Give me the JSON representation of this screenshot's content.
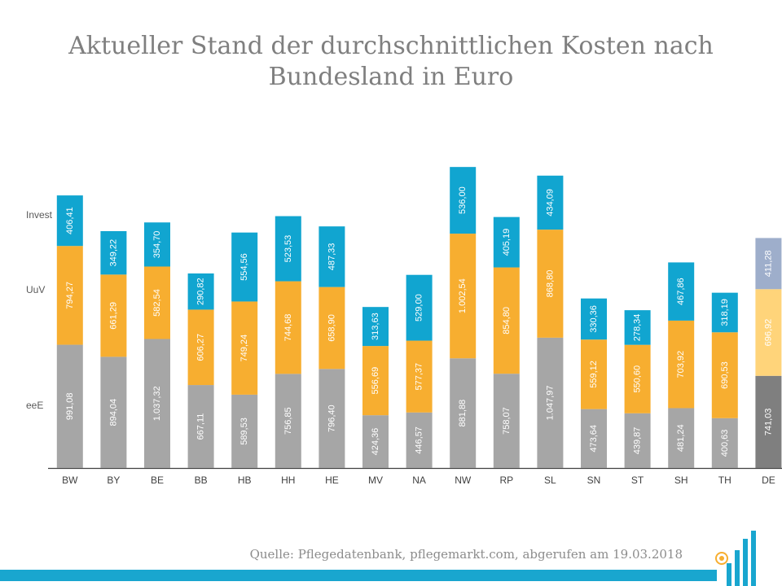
{
  "chart_data": {
    "type": "bar",
    "stacked": true,
    "title": [
      "Aktueller Stand der durchschnittlichen Kosten nach",
      "Bundesland in Euro"
    ],
    "categories": [
      "BW",
      "BY",
      "BE",
      "BB",
      "HB",
      "HH",
      "HE",
      "MV",
      "NA",
      "NW",
      "RP",
      "SL",
      "SN",
      "ST",
      "SH",
      "TH",
      "DE"
    ],
    "legend_labels": [
      "eeE",
      "UuV",
      "Invest"
    ],
    "series": [
      {
        "name": "eeE",
        "color": "#a6a6a6",
        "highlight_color": "#7f7f7f",
        "values": [
          991.08,
          894.04,
          1037.32,
          667.11,
          589.53,
          756.85,
          796.4,
          424.36,
          446.57,
          881.88,
          758.07,
          1047.97,
          473.64,
          439.87,
          481.24,
          400.63,
          741.03
        ],
        "labels": [
          "991,08",
          "894,04",
          "1.037,32",
          "667,11",
          "589,53",
          "756,85",
          "796,40",
          "424,36",
          "446,57",
          "881,88",
          "758,07",
          "1.047,97",
          "473,64",
          "439,87",
          "481,24",
          "400,63",
          "741,03"
        ]
      },
      {
        "name": "UuV",
        "color": "#f7ae30",
        "highlight_color": "#ffd47a",
        "values": [
          794.27,
          661.29,
          582.54,
          606.27,
          749.24,
          744.68,
          658.9,
          556.69,
          577.37,
          1002.54,
          854.8,
          868.8,
          559.12,
          550.6,
          703.92,
          690.53,
          696.92
        ],
        "labels": [
          "794,27",
          "661,29",
          "582,54",
          "606,27",
          "749,24",
          "744,68",
          "658,90",
          "556,69",
          "577,37",
          "1.002,54",
          "854,80",
          "868,80",
          "559,12",
          "550,60",
          "703,92",
          "690,53",
          "696,92"
        ]
      },
      {
        "name": "Invest",
        "color": "#11a5d0",
        "highlight_color": "#9eaecb",
        "values": [
          406.41,
          349.22,
          354.7,
          290.82,
          554.56,
          523.53,
          487.33,
          313.63,
          529.0,
          536.0,
          405.19,
          434.09,
          330.36,
          278.34,
          467.86,
          318.19,
          411.28
        ],
        "labels": [
          "406,41",
          "349,22",
          "354,70",
          "290,82",
          "554,56",
          "523,53",
          "487,33",
          "313,63",
          "529,00",
          "536,00",
          "405,19",
          "434,09",
          "330,36",
          "278,34",
          "467,86",
          "318,19",
          "411,28"
        ]
      }
    ],
    "highlight_category": "DE",
    "ylim": [
      0,
      2500
    ]
  },
  "source": "Quelle: Pflegedatenbank, pflegemarkt.com, abgerufen am 19.03.2018"
}
